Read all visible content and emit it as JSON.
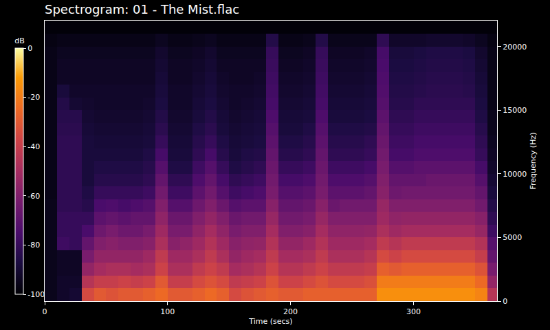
{
  "chart_data": {
    "type": "heatmap",
    "title": "Spectrogram: 01 - The Mist.flac",
    "x_label": "Time (secs)",
    "y_label": "Frequency (Hz)",
    "xlim": [
      0,
      368
    ],
    "xticks": [
      0,
      100,
      200,
      300
    ],
    "ylim": [
      0,
      22050
    ],
    "yticks": [
      0,
      5000,
      10000,
      15000,
      20000
    ],
    "grid": false,
    "x": [
      5,
      15,
      25,
      35,
      45,
      55,
      65,
      75,
      85,
      95,
      105,
      115,
      125,
      135,
      145,
      155,
      165,
      175,
      185,
      195,
      205,
      215,
      225,
      235,
      245,
      255,
      265,
      275,
      285,
      295,
      305,
      315,
      325,
      335,
      345,
      355,
      365
    ],
    "y": [
      500,
      1500,
      2500,
      3500,
      4500,
      5500,
      6500,
      7500,
      8500,
      9500,
      10500,
      11500,
      12500,
      13500,
      14500,
      15500,
      16500,
      17500,
      18500,
      19500,
      20500,
      21500
    ],
    "cells": [
      [
        -95,
        -92,
        -90,
        -35,
        -30,
        -32,
        -30,
        -30,
        -28,
        -25,
        -30,
        -30,
        -28,
        -25,
        -28,
        -35,
        -32,
        -30,
        -28,
        -30,
        -30,
        -28,
        -28,
        -28,
        -28,
        -28,
        -28,
        -15,
        -15,
        -15,
        -15,
        -15,
        -15,
        -15,
        -15,
        -18,
        -45
      ],
      [
        -95,
        -92,
        -92,
        -45,
        -40,
        -40,
        -38,
        -40,
        -38,
        -30,
        -40,
        -40,
        -35,
        -32,
        -35,
        -42,
        -40,
        -38,
        -32,
        -38,
        -38,
        -35,
        -32,
        -35,
        -35,
        -35,
        -33,
        -20,
        -20,
        -20,
        -20,
        -20,
        -20,
        -20,
        -20,
        -25,
        -55
      ],
      [
        -95,
        -93,
        -93,
        -55,
        -50,
        -48,
        -48,
        -50,
        -48,
        -38,
        -48,
        -48,
        -42,
        -38,
        -42,
        -50,
        -48,
        -45,
        -38,
        -45,
        -45,
        -42,
        -38,
        -42,
        -42,
        -42,
        -40,
        -28,
        -30,
        -28,
        -28,
        -28,
        -28,
        -28,
        -28,
        -32,
        -62
      ],
      [
        -95,
        -93,
        -93,
        -62,
        -55,
        -55,
        -55,
        -55,
        -52,
        -42,
        -52,
        -52,
        -48,
        -42,
        -48,
        -55,
        -52,
        -50,
        -42,
        -50,
        -50,
        -48,
        -42,
        -48,
        -48,
        -48,
        -45,
        -35,
        -38,
        -35,
        -35,
        -35,
        -35,
        -35,
        -35,
        -40,
        -68
      ],
      [
        -95,
        -78,
        -80,
        -68,
        -60,
        -58,
        -60,
        -60,
        -58,
        -48,
        -58,
        -56,
        -52,
        -46,
        -52,
        -58,
        -56,
        -55,
        -46,
        -55,
        -55,
        -52,
        -46,
        -52,
        -52,
        -52,
        -50,
        -42,
        -45,
        -42,
        -42,
        -42,
        -42,
        -42,
        -42,
        -46,
        -72
      ],
      [
        -95,
        -80,
        -80,
        -75,
        -65,
        -62,
        -65,
        -65,
        -62,
        -52,
        -62,
        -62,
        -56,
        -50,
        -56,
        -62,
        -60,
        -60,
        -50,
        -60,
        -60,
        -58,
        -50,
        -56,
        -56,
        -56,
        -55,
        -48,
        -52,
        -50,
        -50,
        -50,
        -50,
        -50,
        -50,
        -54,
        -78
      ],
      [
        -95,
        -80,
        -80,
        -80,
        -70,
        -68,
        -70,
        -68,
        -68,
        -56,
        -66,
        -66,
        -60,
        -55,
        -60,
        -66,
        -64,
        -64,
        -54,
        -64,
        -64,
        -62,
        -54,
        -60,
        -60,
        -60,
        -60,
        -52,
        -56,
        -55,
        -55,
        -55,
        -55,
        -55,
        -55,
        -58,
        -82
      ],
      [
        -95,
        -82,
        -82,
        -84,
        -75,
        -74,
        -76,
        -74,
        -72,
        -60,
        -72,
        -72,
        -65,
        -60,
        -66,
        -72,
        -70,
        -70,
        -58,
        -68,
        -68,
        -66,
        -58,
        -66,
        -64,
        -64,
        -64,
        -54,
        -60,
        -60,
        -60,
        -60,
        -60,
        -60,
        -60,
        -64,
        -85
      ],
      [
        -96,
        -82,
        -82,
        -86,
        -80,
        -80,
        -80,
        -80,
        -78,
        -64,
        -78,
        -78,
        -70,
        -64,
        -72,
        -78,
        -76,
        -74,
        -62,
        -72,
        -72,
        -70,
        -62,
        -70,
        -70,
        -70,
        -68,
        -58,
        -65,
        -64,
        -64,
        -64,
        -64,
        -64,
        -64,
        -68,
        -88
      ],
      [
        -96,
        -82,
        -82,
        -88,
        -84,
        -84,
        -84,
        -84,
        -82,
        -68,
        -82,
        -82,
        -74,
        -68,
        -76,
        -82,
        -80,
        -78,
        -64,
        -76,
        -76,
        -74,
        -64,
        -74,
        -74,
        -74,
        -72,
        -60,
        -68,
        -68,
        -68,
        -66,
        -66,
        -66,
        -66,
        -72,
        -90
      ],
      [
        -96,
        -82,
        -82,
        -88,
        -86,
        -86,
        -86,
        -86,
        -84,
        -72,
        -86,
        -86,
        -78,
        -72,
        -80,
        -86,
        -84,
        -82,
        -66,
        -80,
        -80,
        -78,
        -66,
        -78,
        -78,
        -78,
        -76,
        -62,
        -72,
        -72,
        -70,
        -70,
        -70,
        -70,
        -70,
        -76,
        -92
      ],
      [
        -96,
        -82,
        -82,
        -88,
        -88,
        -88,
        -88,
        -88,
        -86,
        -76,
        -88,
        -88,
        -82,
        -76,
        -84,
        -88,
        -86,
        -85,
        -68,
        -84,
        -84,
        -82,
        -68,
        -82,
        -82,
        -82,
        -80,
        -64,
        -76,
        -76,
        -74,
        -74,
        -74,
        -74,
        -74,
        -80,
        -93
      ],
      [
        -96,
        -82,
        -82,
        -88,
        -89,
        -89,
        -89,
        -89,
        -88,
        -80,
        -89,
        -89,
        -84,
        -80,
        -86,
        -89,
        -88,
        -87,
        -70,
        -86,
        -86,
        -84,
        -70,
        -84,
        -84,
        -84,
        -82,
        -66,
        -78,
        -78,
        -76,
        -76,
        -76,
        -76,
        -76,
        -82,
        -94
      ],
      [
        -96,
        -83,
        -83,
        -89,
        -90,
        -90,
        -90,
        -90,
        -89,
        -83,
        -90,
        -90,
        -86,
        -83,
        -88,
        -90,
        -89,
        -88,
        -72,
        -88,
        -88,
        -86,
        -72,
        -86,
        -86,
        -86,
        -85,
        -68,
        -80,
        -80,
        -78,
        -78,
        -78,
        -78,
        -78,
        -84,
        -95
      ],
      [
        -96,
        -84,
        -84,
        -90,
        -91,
        -91,
        -91,
        -91,
        -90,
        -85,
        -91,
        -91,
        -88,
        -85,
        -89,
        -91,
        -90,
        -89,
        -74,
        -89,
        -89,
        -88,
        -74,
        -88,
        -88,
        -88,
        -87,
        -70,
        -82,
        -82,
        -80,
        -80,
        -80,
        -80,
        -80,
        -86,
        -95
      ],
      [
        -96,
        -85,
        -90,
        -91,
        -92,
        -92,
        -92,
        -92,
        -91,
        -87,
        -92,
        -92,
        -89,
        -87,
        -90,
        -92,
        -91,
        -90,
        -76,
        -90,
        -90,
        -89,
        -76,
        -89,
        -89,
        -89,
        -88,
        -72,
        -84,
        -84,
        -82,
        -82,
        -82,
        -82,
        -82,
        -87,
        -96
      ],
      [
        -96,
        -88,
        -92,
        -92,
        -92,
        -92,
        -92,
        -92,
        -92,
        -88,
        -92,
        -92,
        -90,
        -88,
        -91,
        -92,
        -92,
        -91,
        -77,
        -91,
        -91,
        -90,
        -77,
        -90,
        -90,
        -90,
        -89,
        -73,
        -85,
        -85,
        -84,
        -83,
        -83,
        -83,
        -84,
        -88,
        -96
      ],
      [
        -96,
        -93,
        -93,
        -93,
        -93,
        -93,
        -93,
        -93,
        -93,
        -89,
        -93,
        -93,
        -91,
        -89,
        -92,
        -93,
        -93,
        -92,
        -78,
        -92,
        -92,
        -91,
        -78,
        -91,
        -91,
        -91,
        -90,
        -74,
        -86,
        -86,
        -85,
        -84,
        -84,
        -84,
        -85,
        -89,
        -96
      ],
      [
        -96,
        -93,
        -93,
        -93,
        -93,
        -93,
        -93,
        -93,
        -93,
        -90,
        -93,
        -93,
        -92,
        -90,
        -93,
        -93,
        -93,
        -93,
        -79,
        -93,
        -93,
        -92,
        -79,
        -92,
        -92,
        -92,
        -91,
        -75,
        -87,
        -87,
        -86,
        -85,
        -85,
        -85,
        -86,
        -90,
        -96
      ],
      [
        -96,
        -94,
        -94,
        -94,
        -94,
        -94,
        -94,
        -94,
        -94,
        -91,
        -94,
        -94,
        -93,
        -91,
        -94,
        -94,
        -94,
        -94,
        -80,
        -94,
        -94,
        -93,
        -80,
        -93,
        -93,
        -93,
        -92,
        -76,
        -88,
        -88,
        -87,
        -86,
        -86,
        -86,
        -87,
        -91,
        -96
      ],
      [
        -97,
        -96,
        -96,
        -96,
        -96,
        -96,
        -96,
        -96,
        -96,
        -94,
        -96,
        -96,
        -95,
        -94,
        -96,
        -96,
        -96,
        -96,
        -85,
        -96,
        -96,
        -95,
        -85,
        -95,
        -95,
        -95,
        -95,
        -82,
        -92,
        -92,
        -92,
        -91,
        -91,
        -91,
        -92,
        -94,
        -97
      ],
      [
        -99,
        -99,
        -99,
        -99,
        -99,
        -99,
        -99,
        -99,
        -99,
        -99,
        -99,
        -99,
        -99,
        -99,
        -99,
        -99,
        -99,
        -99,
        -99,
        -99,
        -99,
        -99,
        -99,
        -99,
        -99,
        -99,
        -99,
        -99,
        -99,
        -99,
        -99,
        -99,
        -99,
        -99,
        -99,
        -99,
        -99
      ]
    ],
    "colorbar": {
      "title": "dB",
      "range": [
        -100,
        0
      ],
      "ticks": [
        0,
        -20,
        -40,
        -60,
        -80,
        -100
      ]
    }
  }
}
